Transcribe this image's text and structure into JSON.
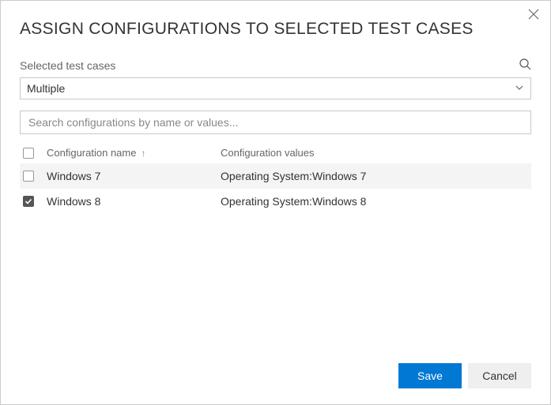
{
  "dialog": {
    "title": "ASSIGN CONFIGURATIONS TO SELECTED TEST CASES"
  },
  "selected": {
    "label": "Selected test cases",
    "dropdown_value": "Multiple"
  },
  "search": {
    "placeholder": "Search configurations by name or values..."
  },
  "table": {
    "headers": {
      "name": "Configuration name",
      "values": "Configuration values"
    },
    "rows": [
      {
        "checked": false,
        "hover": true,
        "name": "Windows 7",
        "values": "Operating System:Windows 7"
      },
      {
        "checked": true,
        "hover": false,
        "name": "Windows 8",
        "values": "Operating System:Windows 8"
      }
    ]
  },
  "buttons": {
    "save": "Save",
    "cancel": "Cancel"
  },
  "colors": {
    "primary": "#0078d4",
    "border": "#c8c8c8",
    "row_hover": "#f4f4f4",
    "text": "#333333",
    "muted": "#666666"
  }
}
